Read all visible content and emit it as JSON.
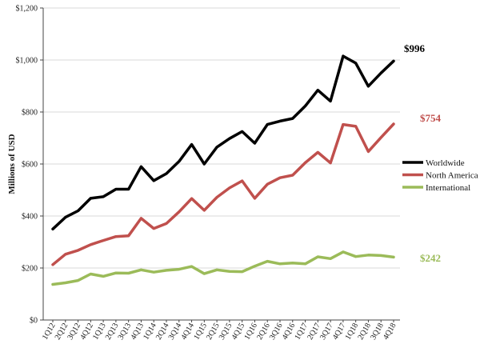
{
  "chart_data": {
    "type": "line",
    "ylabel": "Millions of USD",
    "xlabel": "",
    "title": "",
    "ylim": [
      0,
      1200
    ],
    "yticks": [
      0,
      200,
      400,
      600,
      800,
      1000,
      1200
    ],
    "ytick_labels": [
      "$0",
      "$200",
      "$400",
      "$600",
      "$800",
      "$1,000",
      "$1,200"
    ],
    "grid": "horizontal",
    "legend_position": "right",
    "categories": [
      "1Q12",
      "2Q12",
      "3Q12",
      "4Q12",
      "1Q13",
      "2Q13",
      "3Q13",
      "4Q13",
      "1Q14",
      "2Q14",
      "3Q14",
      "4Q14",
      "1Q15",
      "2Q15",
      "3Q15",
      "4Q15",
      "1Q16",
      "2Q16",
      "3Q16",
      "4Q16",
      "1Q17",
      "2Q17",
      "3Q17",
      "4Q17",
      "1Q18",
      "2Q18",
      "3Q18",
      "4Q18"
    ],
    "series": [
      {
        "name": "Worldwide",
        "color": "#000000",
        "values": [
          350,
          395,
          420,
          468,
          474,
          503,
          503,
          590,
          536,
          563,
          610,
          675,
          600,
          665,
          698,
          725,
          680,
          752,
          765,
          775,
          823,
          884,
          842,
          1015,
          988,
          899,
          950,
          996
        ],
        "end_label": "$996",
        "end_label_color": "#000000"
      },
      {
        "name": "North America",
        "color": "#c0504d",
        "values": [
          213,
          253,
          268,
          290,
          306,
          321,
          324,
          391,
          352,
          371,
          416,
          467,
          422,
          472,
          508,
          535,
          468,
          522,
          547,
          557,
          605,
          645,
          604,
          752,
          745,
          648,
          702,
          754
        ],
        "end_label": "$754",
        "end_label_color": "#c0504d"
      },
      {
        "name": "International",
        "color": "#9bbb59",
        "values": [
          137,
          143,
          152,
          177,
          168,
          181,
          180,
          193,
          184,
          191,
          195,
          206,
          178,
          193,
          187,
          186,
          207,
          226,
          216,
          219,
          216,
          243,
          236,
          262,
          244,
          250,
          248,
          242
        ],
        "end_label": "$242",
        "end_label_color": "#9bbb59"
      }
    ]
  }
}
